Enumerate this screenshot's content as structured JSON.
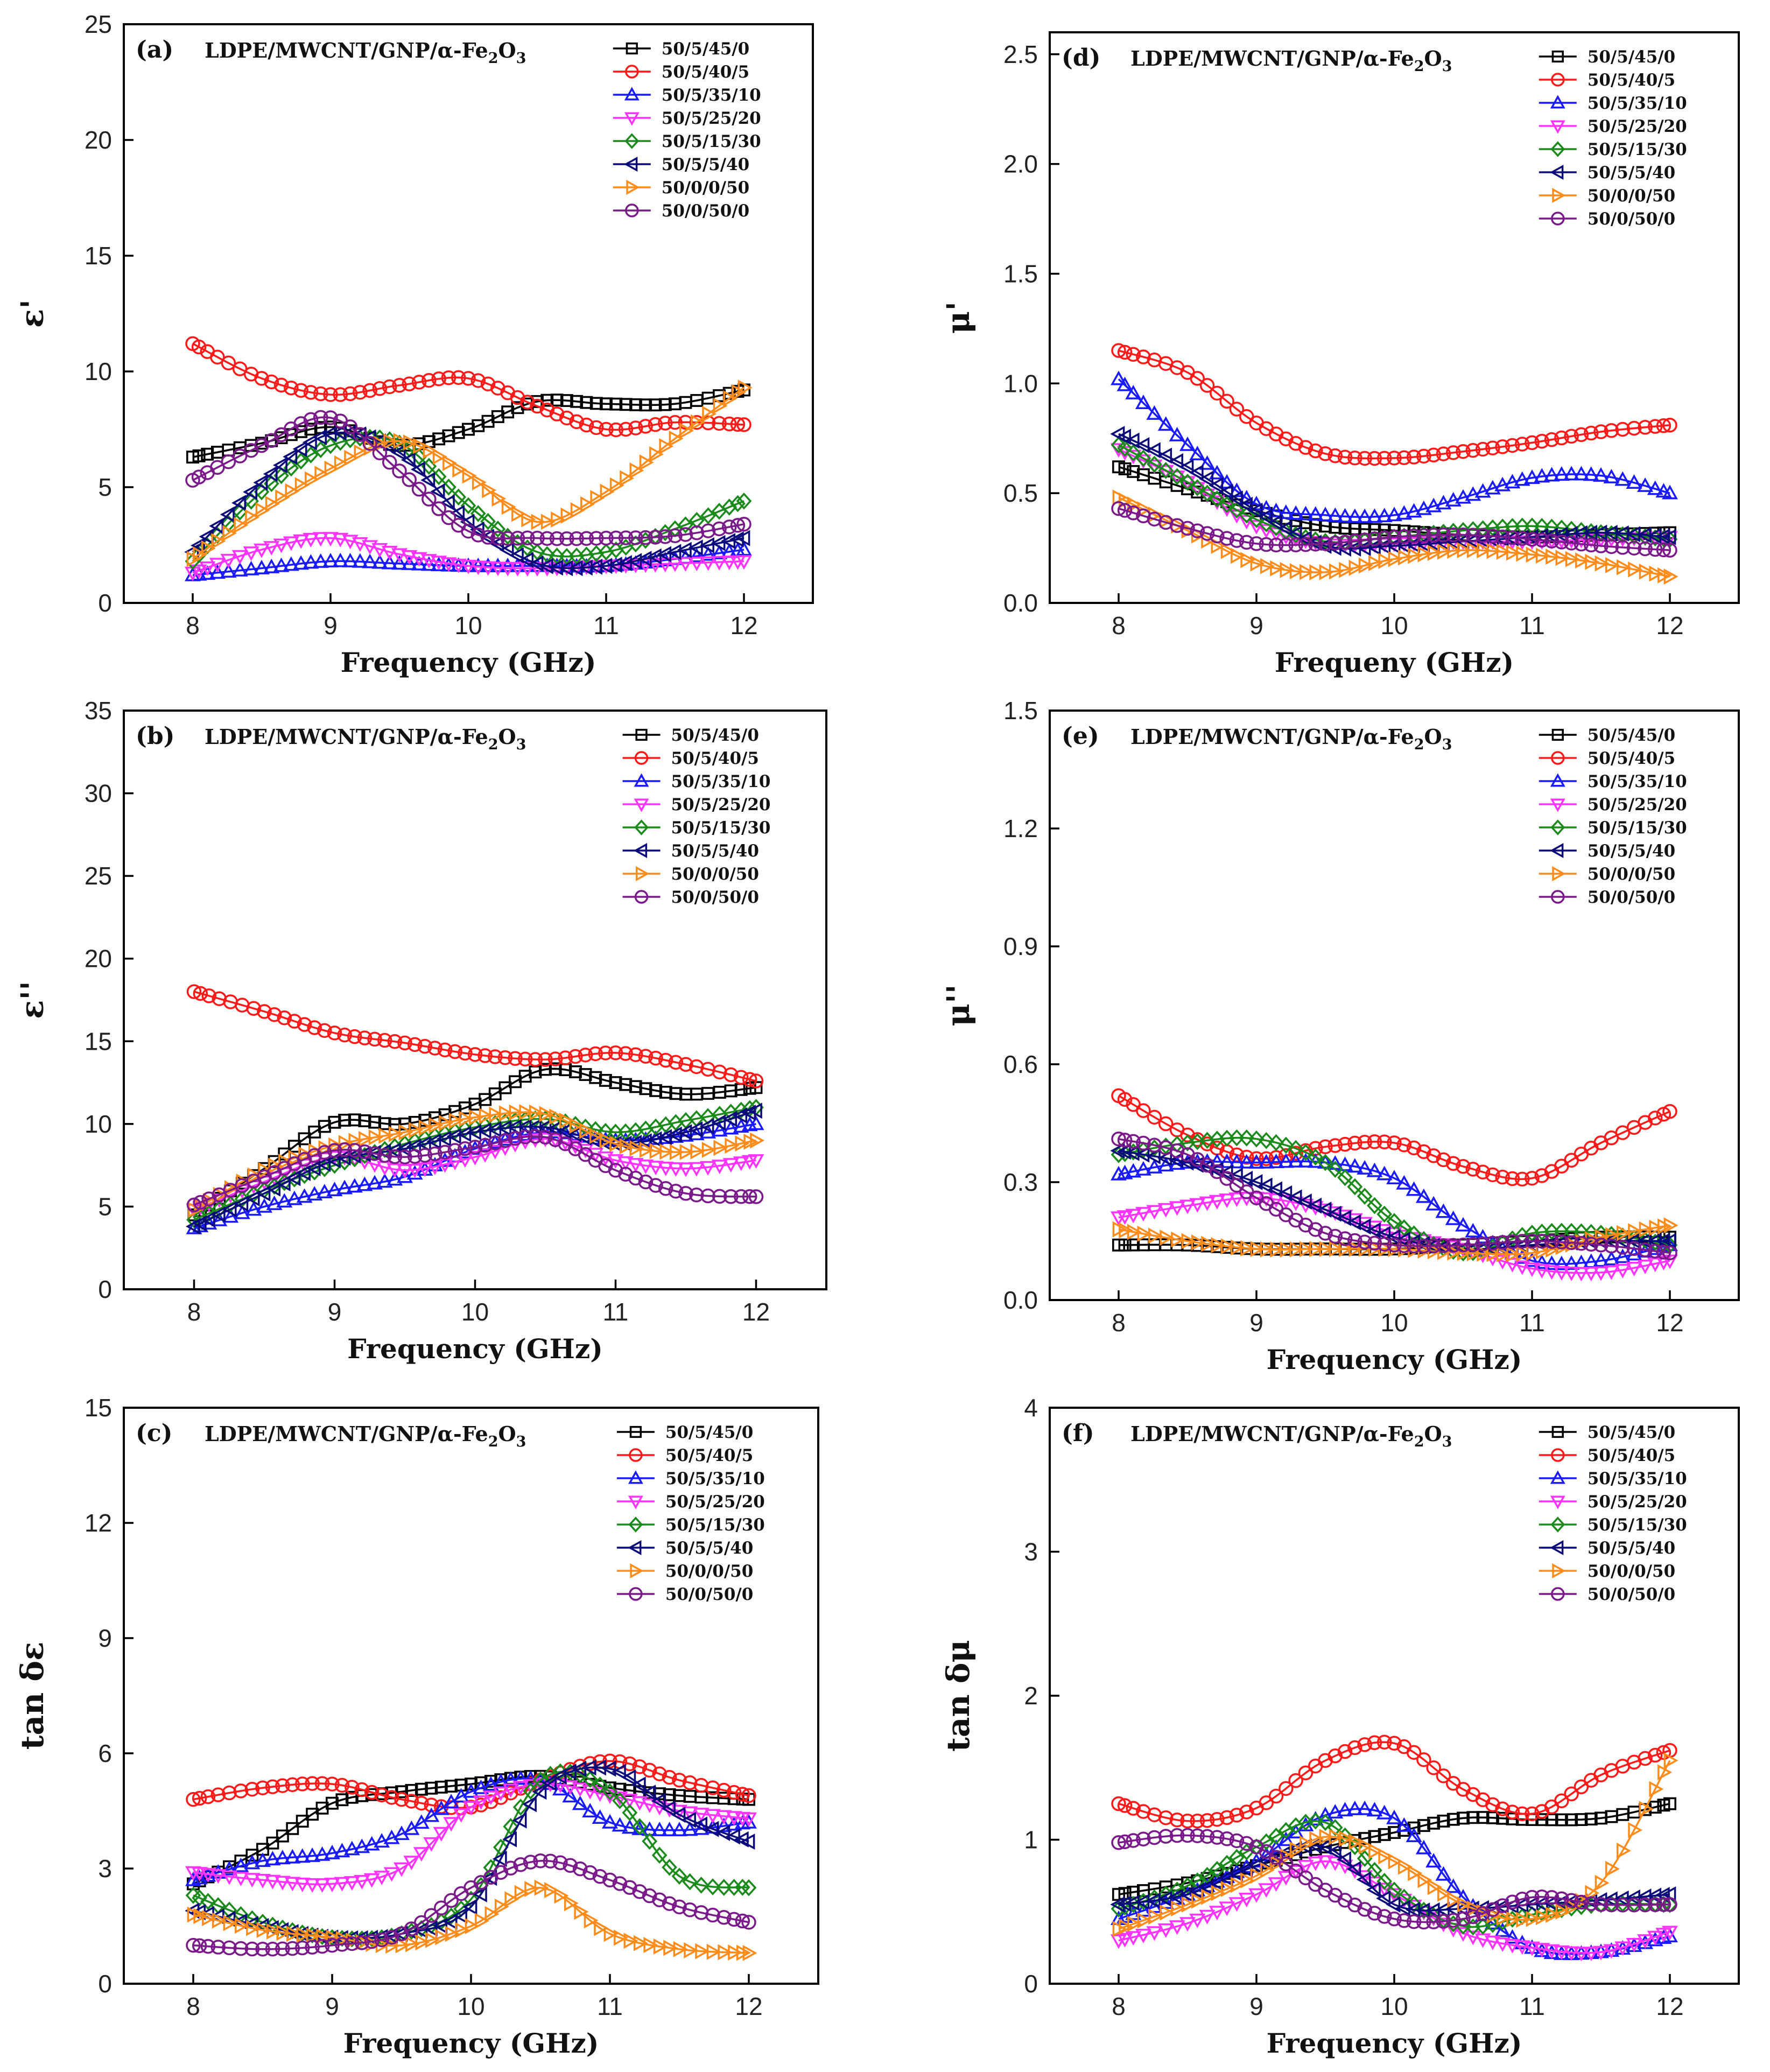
{
  "series_styles": [
    {
      "name": "50/5/45/0",
      "color": "#000000",
      "marker": "square"
    },
    {
      "name": "50/5/40/5",
      "color": "#ff1a1a",
      "marker": "circle"
    },
    {
      "name": "50/5/35/10",
      "color": "#1a1aff",
      "marker": "triangle-up"
    },
    {
      "name": "50/5/25/20",
      "color": "#ff33ff",
      "marker": "triangle-down"
    },
    {
      "name": "50/5/15/30",
      "color": "#1a8a1a",
      "marker": "diamond"
    },
    {
      "name": "50/5/5/40",
      "color": "#0a0a7a",
      "marker": "triangle-left"
    },
    {
      "name": "50/0/0/50",
      "color": "#ff8c1a",
      "marker": "triangle-right"
    },
    {
      "name": "50/0/50/0",
      "color": "#7a1a8a",
      "marker": "circle"
    }
  ],
  "chart_data": [
    {
      "type": "line",
      "label": "(a)",
      "title_prefix": "LDPE/MWCNT/GNP/α-Fe",
      "title_sub1": "2",
      "title_mid": "O",
      "title_sub2": "3",
      "xlabel": "Frequency (GHz)",
      "ylabel": "ε'",
      "xlim": [
        7.5,
        12.5
      ],
      "ylim": [
        0,
        25
      ],
      "xticks": [
        8,
        9,
        10,
        11,
        12
      ],
      "yticks": [
        0,
        5,
        10,
        15,
        20,
        25
      ],
      "xticklabels": [
        "8",
        "9",
        "10",
        "11",
        "12"
      ],
      "yticklabels": [
        "0",
        "5",
        "10",
        "15",
        "20",
        "25"
      ],
      "legend_position": "top-right",
      "x": [
        8,
        8.5,
        9,
        9.5,
        10,
        10.5,
        11,
        11.5,
        12
      ],
      "series": [
        {
          "name": "50/5/45/0",
          "values": [
            6.3,
            6.9,
            7.6,
            6.8,
            7.5,
            8.7,
            8.6,
            8.6,
            9.2
          ]
        },
        {
          "name": "50/5/40/5",
          "values": [
            11.2,
            9.7,
            9.0,
            9.4,
            9.7,
            8.5,
            7.5,
            7.8,
            7.7
          ]
        },
        {
          "name": "50/5/35/10",
          "values": [
            1.2,
            1.5,
            1.8,
            1.7,
            1.6,
            1.6,
            1.6,
            1.9,
            2.3
          ]
        },
        {
          "name": "50/5/25/20",
          "values": [
            1.3,
            2.3,
            2.8,
            2.1,
            1.6,
            1.5,
            1.6,
            1.7,
            1.8
          ]
        },
        {
          "name": "50/5/15/30",
          "values": [
            1.8,
            4.8,
            6.8,
            6.9,
            4.2,
            2.2,
            2.2,
            3.2,
            4.4
          ]
        },
        {
          "name": "50/5/5/40",
          "values": [
            2.2,
            5.2,
            7.3,
            6.5,
            3.5,
            1.7,
            1.6,
            2.2,
            2.8
          ]
        },
        {
          "name": "50/0/0/50",
          "values": [
            1.9,
            4.0,
            5.8,
            7.0,
            5.5,
            3.5,
            4.8,
            7.1,
            9.3
          ]
        },
        {
          "name": "50/0/50/0",
          "values": [
            5.3,
            6.8,
            8.0,
            5.7,
            3.1,
            2.8,
            2.8,
            2.9,
            3.4
          ]
        }
      ]
    },
    {
      "type": "line",
      "label": "(b)",
      "title_prefix": "LDPE/MWCNT/GNP/α-Fe",
      "title_sub1": "2",
      "title_mid": "O",
      "title_sub2": "3",
      "xlabel": "Frequency (GHz)",
      "ylabel": "ε''",
      "xlim": [
        7.5,
        12.5
      ],
      "ylim": [
        0,
        35
      ],
      "xticks": [
        8,
        9,
        10,
        11,
        12
      ],
      "yticks": [
        0,
        5,
        10,
        15,
        20,
        25,
        30,
        35
      ],
      "xticklabels": [
        "8",
        "9",
        "10",
        "11",
        "12"
      ],
      "yticklabels": [
        "0",
        "5",
        "10",
        "15",
        "20",
        "25",
        "30",
        "35"
      ],
      "legend_position": "top-right",
      "x": [
        8,
        8.5,
        9,
        9.5,
        10,
        10.5,
        11,
        11.5,
        12
      ],
      "series": [
        {
          "name": "50/5/45/0",
          "values": [
            4.5,
            7.3,
            10.1,
            10.0,
            11.2,
            13.3,
            12.5,
            11.8,
            12.2
          ]
        },
        {
          "name": "50/5/40/5",
          "values": [
            18.0,
            16.8,
            15.5,
            14.9,
            14.2,
            13.9,
            14.3,
            13.6,
            12.6
          ]
        },
        {
          "name": "50/5/35/10",
          "values": [
            3.7,
            5.0,
            6.0,
            6.8,
            8.5,
            9.5,
            9.0,
            9.3,
            10.0
          ]
        },
        {
          "name": "50/5/25/20",
          "values": [
            4.8,
            6.5,
            8.0,
            7.2,
            8.0,
            9.1,
            7.8,
            7.3,
            7.8
          ]
        },
        {
          "name": "50/5/15/30",
          "values": [
            4.2,
            6.0,
            7.5,
            8.8,
            9.8,
            10.3,
            9.5,
            10.2,
            11.0
          ]
        },
        {
          "name": "50/5/5/40",
          "values": [
            3.8,
            5.8,
            7.8,
            8.5,
            9.5,
            9.8,
            8.8,
            9.5,
            10.8
          ]
        },
        {
          "name": "50/0/0/50",
          "values": [
            4.8,
            7.2,
            8.7,
            9.5,
            10.4,
            10.6,
            8.8,
            8.3,
            9.0
          ]
        },
        {
          "name": "50/0/50/0",
          "values": [
            5.1,
            6.8,
            8.4,
            8.0,
            8.6,
            9.2,
            7.2,
            5.8,
            5.6
          ]
        }
      ]
    },
    {
      "type": "line",
      "label": "(c)",
      "title_prefix": "LDPE/MWCNT/GNP/α-Fe",
      "title_sub1": "2",
      "title_mid": "O",
      "title_sub2": "3",
      "xlabel": "Frequency (GHz)",
      "ylabel": "tan δε",
      "xlim": [
        7.5,
        12.5
      ],
      "ylim": [
        0,
        15
      ],
      "xticks": [
        8,
        9,
        10,
        11,
        12
      ],
      "yticks": [
        0,
        3,
        6,
        9,
        12,
        15
      ],
      "xticklabels": [
        "8",
        "9",
        "10",
        "11",
        "12"
      ],
      "yticklabels": [
        "0",
        "3",
        "6",
        "9",
        "12",
        "15"
      ],
      "legend_position": "top-right",
      "x": [
        8,
        8.5,
        9,
        9.5,
        10,
        10.5,
        11,
        11.5,
        12
      ],
      "series": [
        {
          "name": "50/5/45/0",
          "values": [
            2.6,
            3.5,
            4.7,
            5.0,
            5.2,
            5.4,
            5.1,
            4.9,
            4.8
          ]
        },
        {
          "name": "50/5/40/5",
          "values": [
            4.8,
            5.1,
            5.2,
            4.8,
            4.6,
            5.3,
            5.8,
            5.3,
            4.9
          ]
        },
        {
          "name": "50/5/35/10",
          "values": [
            2.7,
            3.2,
            3.4,
            3.9,
            5.0,
            5.3,
            4.2,
            4.0,
            4.2
          ]
        },
        {
          "name": "50/5/25/20",
          "values": [
            2.9,
            2.7,
            2.6,
            3.0,
            4.6,
            5.2,
            4.9,
            4.5,
            4.3
          ]
        },
        {
          "name": "50/5/15/30",
          "values": [
            2.3,
            1.6,
            1.2,
            1.3,
            2.2,
            5.3,
            5.0,
            2.8,
            2.5
          ]
        },
        {
          "name": "50/5/5/40",
          "values": [
            1.9,
            1.5,
            1.2,
            1.3,
            2.0,
            5.0,
            5.6,
            4.4,
            3.7
          ]
        },
        {
          "name": "50/0/0/50",
          "values": [
            1.8,
            1.4,
            1.2,
            1.0,
            1.5,
            2.5,
            1.3,
            0.9,
            0.8
          ]
        },
        {
          "name": "50/0/50/0",
          "values": [
            1.0,
            0.9,
            1.0,
            1.3,
            2.5,
            3.2,
            2.7,
            2.0,
            1.6
          ]
        }
      ]
    },
    {
      "type": "line",
      "label": "(d)",
      "title_prefix": "LDPE/MWCNT/GNP/α-Fe",
      "title_sub1": "2",
      "title_mid": "O",
      "title_sub2": "3",
      "xlabel": "Frequeny (GHz)",
      "ylabel": "μ'",
      "xlim": [
        7.5,
        12.5
      ],
      "ylim": [
        0,
        2.6
      ],
      "xticks": [
        8,
        9,
        10,
        11,
        12
      ],
      "yticks": [
        0,
        0.5,
        1.0,
        1.5,
        2.0,
        2.5
      ],
      "xticklabels": [
        "8",
        "9",
        "10",
        "11",
        "12"
      ],
      "yticklabels": [
        "0.0",
        "0.5",
        "1.0",
        "1.5",
        "2.0",
        "2.5"
      ],
      "legend_position": "top-right",
      "x": [
        8,
        8.5,
        9,
        9.5,
        10,
        10.5,
        11,
        11.5,
        12
      ],
      "series": [
        {
          "name": "50/5/45/0",
          "values": [
            0.62,
            0.52,
            0.42,
            0.35,
            0.33,
            0.31,
            0.3,
            0.31,
            0.32
          ]
        },
        {
          "name": "50/5/40/5",
          "values": [
            1.15,
            1.05,
            0.82,
            0.68,
            0.66,
            0.69,
            0.73,
            0.78,
            0.81
          ]
        },
        {
          "name": "50/5/35/10",
          "values": [
            1.02,
            0.72,
            0.45,
            0.4,
            0.4,
            0.48,
            0.57,
            0.58,
            0.5
          ]
        },
        {
          "name": "50/5/25/20",
          "values": [
            0.7,
            0.55,
            0.35,
            0.27,
            0.27,
            0.28,
            0.28,
            0.29,
            0.3
          ]
        },
        {
          "name": "50/5/15/30",
          "values": [
            0.72,
            0.55,
            0.38,
            0.28,
            0.3,
            0.33,
            0.35,
            0.32,
            0.29
          ]
        },
        {
          "name": "50/5/5/40",
          "values": [
            0.77,
            0.62,
            0.42,
            0.26,
            0.26,
            0.28,
            0.3,
            0.32,
            0.3
          ]
        },
        {
          "name": "50/0/0/50",
          "values": [
            0.48,
            0.33,
            0.18,
            0.14,
            0.2,
            0.24,
            0.22,
            0.18,
            0.12
          ]
        },
        {
          "name": "50/0/50/0",
          "values": [
            0.43,
            0.34,
            0.27,
            0.27,
            0.3,
            0.31,
            0.29,
            0.26,
            0.24
          ]
        }
      ]
    },
    {
      "type": "line",
      "label": "(e)",
      "title_prefix": "LDPE/MWCNT/GNP/α-Fe",
      "title_sub1": "2",
      "title_mid": "O",
      "title_sub2": "3",
      "xlabel": "Frequency (GHz)",
      "ylabel": "μ''",
      "xlim": [
        7.5,
        12.5
      ],
      "ylim": [
        0,
        1.5
      ],
      "xticks": [
        8,
        9,
        10,
        11,
        12
      ],
      "yticks": [
        0,
        0.3,
        0.6,
        0.9,
        1.2,
        1.5
      ],
      "xticklabels": [
        "8",
        "9",
        "10",
        "11",
        "12"
      ],
      "yticklabels": [
        "0.0",
        "0.3",
        "0.6",
        "0.9",
        "1.2",
        "1.5"
      ],
      "legend_position": "top-right",
      "x": [
        8,
        8.5,
        9,
        9.5,
        10,
        10.5,
        11,
        11.5,
        12
      ],
      "series": [
        {
          "name": "50/5/45/0",
          "values": [
            0.14,
            0.14,
            0.13,
            0.13,
            0.13,
            0.14,
            0.15,
            0.16,
            0.16
          ]
        },
        {
          "name": "50/5/40/5",
          "values": [
            0.52,
            0.42,
            0.36,
            0.39,
            0.4,
            0.34,
            0.31,
            0.4,
            0.48
          ]
        },
        {
          "name": "50/5/35/10",
          "values": [
            0.32,
            0.35,
            0.35,
            0.35,
            0.31,
            0.19,
            0.1,
            0.1,
            0.14
          ]
        },
        {
          "name": "50/5/25/20",
          "values": [
            0.21,
            0.24,
            0.26,
            0.23,
            0.17,
            0.13,
            0.08,
            0.07,
            0.1
          ]
        },
        {
          "name": "50/5/15/30",
          "values": [
            0.37,
            0.4,
            0.41,
            0.35,
            0.2,
            0.12,
            0.17,
            0.17,
            0.14
          ]
        },
        {
          "name": "50/5/5/40",
          "values": [
            0.38,
            0.35,
            0.3,
            0.23,
            0.16,
            0.13,
            0.14,
            0.15,
            0.15
          ]
        },
        {
          "name": "50/0/0/50",
          "values": [
            0.18,
            0.15,
            0.13,
            0.13,
            0.13,
            0.12,
            0.12,
            0.16,
            0.19
          ]
        },
        {
          "name": "50/0/50/0",
          "values": [
            0.41,
            0.37,
            0.26,
            0.17,
            0.14,
            0.14,
            0.15,
            0.14,
            0.12
          ]
        }
      ]
    },
    {
      "type": "line",
      "label": "(f)",
      "title_prefix": "LDPE/MWCNT/GNP/α-Fe",
      "title_sub1": "2",
      "title_mid": "O",
      "title_sub2": "3",
      "xlabel": "Frequency (GHz)",
      "ylabel": "tan δμ",
      "xlim": [
        7.5,
        12.5
      ],
      "ylim": [
        0,
        4
      ],
      "xticks": [
        8,
        9,
        10,
        11,
        12
      ],
      "yticks": [
        0,
        1,
        2,
        3,
        4
      ],
      "xticklabels": [
        "8",
        "9",
        "10",
        "11",
        "12"
      ],
      "yticklabels": [
        "0",
        "1",
        "2",
        "3",
        "4"
      ],
      "legend_position": "top-right",
      "x": [
        8,
        8.5,
        9,
        9.5,
        10,
        10.5,
        11,
        11.5,
        12
      ],
      "series": [
        {
          "name": "50/5/45/0",
          "values": [
            0.62,
            0.7,
            0.82,
            0.95,
            1.05,
            1.15,
            1.14,
            1.15,
            1.25
          ]
        },
        {
          "name": "50/5/40/5",
          "values": [
            1.25,
            1.13,
            1.22,
            1.55,
            1.67,
            1.35,
            1.18,
            1.45,
            1.62
          ]
        },
        {
          "name": "50/5/35/10",
          "values": [
            0.45,
            0.62,
            0.85,
            1.17,
            1.15,
            0.6,
            0.25,
            0.22,
            0.33
          ]
        },
        {
          "name": "50/5/25/20",
          "values": [
            0.3,
            0.42,
            0.62,
            0.85,
            0.62,
            0.35,
            0.25,
            0.22,
            0.36
          ]
        },
        {
          "name": "50/5/15/30",
          "values": [
            0.52,
            0.68,
            0.95,
            1.12,
            0.65,
            0.4,
            0.48,
            0.55,
            0.55
          ]
        },
        {
          "name": "50/5/5/40",
          "values": [
            0.55,
            0.62,
            0.82,
            0.95,
            0.55,
            0.52,
            0.55,
            0.58,
            0.62
          ]
        },
        {
          "name": "50/0/0/50",
          "values": [
            0.38,
            0.55,
            0.75,
            1.02,
            0.85,
            0.55,
            0.45,
            0.7,
            1.55
          ]
        },
        {
          "name": "50/0/50/0",
          "values": [
            0.98,
            1.03,
            0.95,
            0.65,
            0.45,
            0.45,
            0.6,
            0.55,
            0.55
          ]
        }
      ]
    }
  ]
}
